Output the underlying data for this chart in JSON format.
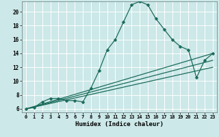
{
  "title": "",
  "xlabel": "Humidex (Indice chaleur)",
  "ylabel": "",
  "background_color": "#cce8e8",
  "grid_color": "#ffffff",
  "line_color": "#1a6b5a",
  "xlim": [
    -0.5,
    23.5
  ],
  "ylim": [
    5.5,
    21.5
  ],
  "yticks": [
    6,
    8,
    10,
    12,
    14,
    16,
    18,
    20
  ],
  "xticks": [
    0,
    1,
    2,
    3,
    4,
    5,
    6,
    7,
    8,
    9,
    10,
    11,
    12,
    13,
    14,
    15,
    16,
    17,
    18,
    19,
    20,
    21,
    22,
    23
  ],
  "series_main": {
    "x": [
      0,
      1,
      2,
      3,
      4,
      5,
      6,
      7,
      8,
      9,
      10,
      11,
      12,
      13,
      14,
      15,
      16,
      17,
      18,
      19,
      20,
      21,
      22,
      23
    ],
    "y": [
      6.0,
      6.2,
      7.0,
      7.5,
      7.5,
      7.2,
      7.2,
      7.0,
      9.0,
      11.5,
      14.5,
      16.0,
      18.5,
      21.0,
      21.5,
      21.0,
      19.0,
      17.5,
      16.0,
      15.0,
      14.5,
      10.5,
      13.0,
      14.0
    ]
  },
  "series_lines": [
    {
      "x": [
        0,
        23
      ],
      "y": [
        6.0,
        14.0
      ]
    },
    {
      "x": [
        0,
        23
      ],
      "y": [
        6.0,
        13.0
      ]
    },
    {
      "x": [
        0,
        23
      ],
      "y": [
        6.0,
        12.0
      ]
    }
  ]
}
